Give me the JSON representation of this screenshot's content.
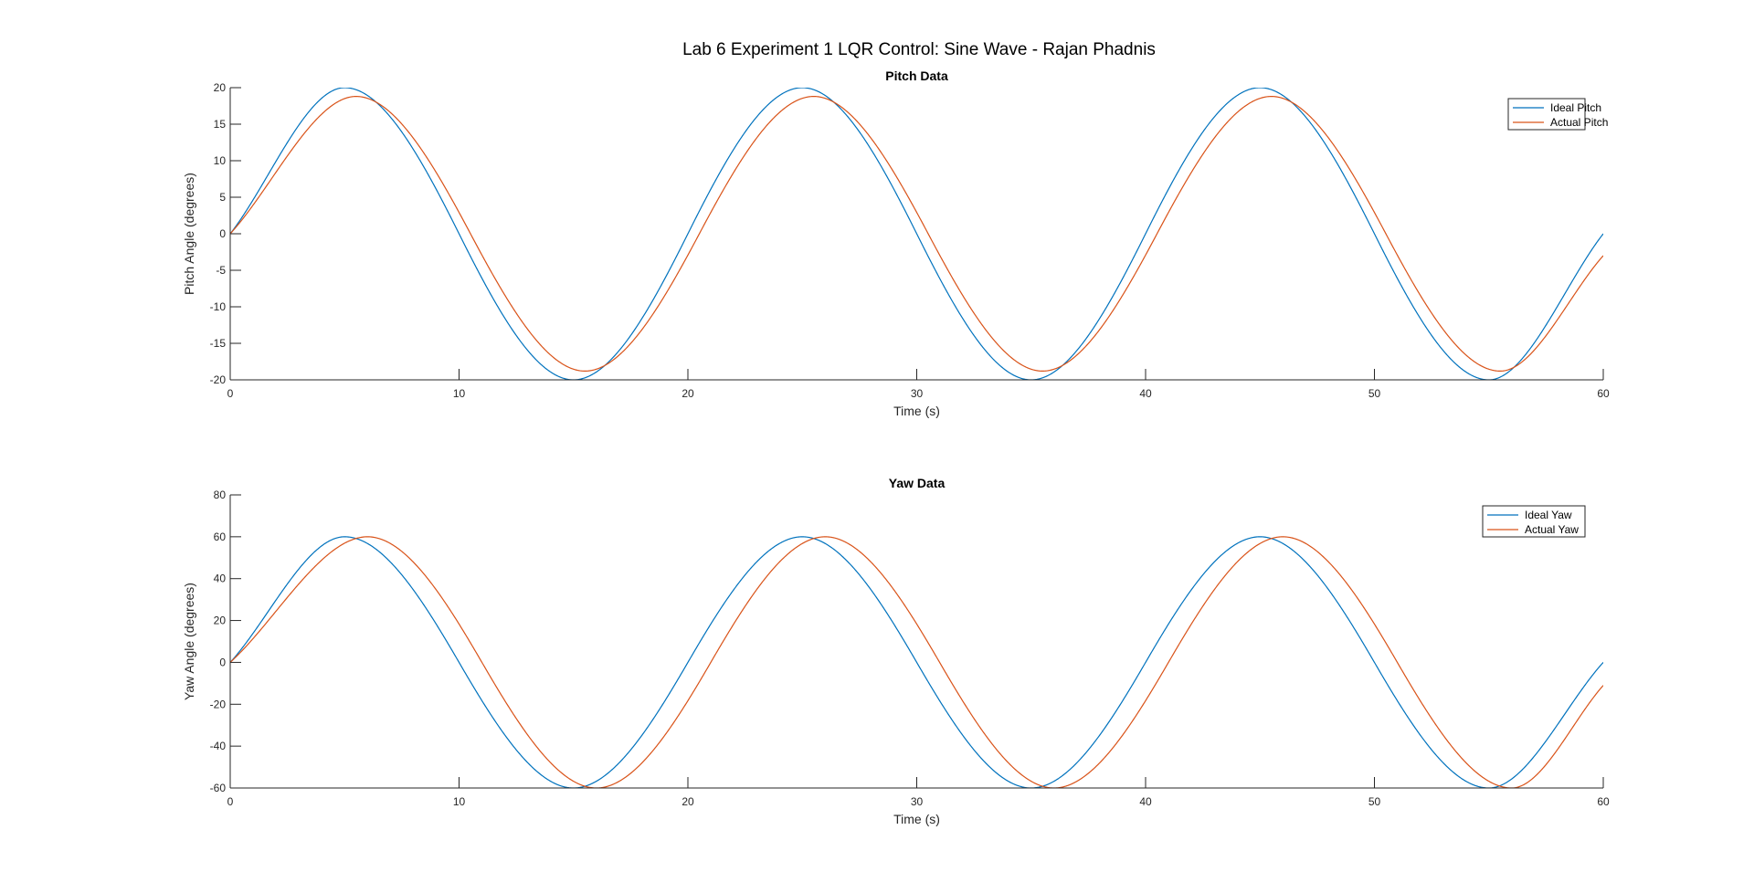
{
  "figure": {
    "title": "Lab 6 Experiment 1 LQR Control: Sine Wave - Rajan Phadnis",
    "background": "#ffffff"
  },
  "chart_data": [
    {
      "type": "line",
      "title": "Pitch Data",
      "xlabel": "Time (s)",
      "ylabel": "Pitch Angle (degrees)",
      "xlim": [
        0,
        60
      ],
      "ylim": [
        -20,
        20
      ],
      "xticks": [
        0,
        10,
        20,
        30,
        40,
        50,
        60
      ],
      "yticks": [
        -20,
        -15,
        -10,
        -5,
        0,
        5,
        10,
        15,
        20
      ],
      "grid": false,
      "legend_position": "top-right",
      "series": [
        {
          "name": "Ideal Pitch",
          "color": "#0072BD",
          "x": [
            0,
            5,
            10,
            15,
            20,
            25,
            30,
            35,
            40,
            45,
            50,
            55,
            60
          ],
          "values": [
            0,
            20,
            0,
            -20,
            0,
            20,
            0,
            -20,
            0,
            20,
            0,
            -20,
            0
          ]
        },
        {
          "name": "Actual Pitch",
          "color": "#D95319",
          "x": [
            0,
            5.5,
            10.5,
            15.5,
            20.5,
            25.5,
            30.5,
            35.5,
            40.5,
            45.5,
            50.5,
            55.5,
            60
          ],
          "values": [
            0,
            18.8,
            0,
            -18.8,
            0,
            18.8,
            0,
            -18.8,
            0,
            18.8,
            0,
            -18.8,
            -3
          ]
        }
      ]
    },
    {
      "type": "line",
      "title": "Yaw Data",
      "xlabel": "Time (s)",
      "ylabel": "Yaw Angle (degrees)",
      "xlim": [
        0,
        60
      ],
      "ylim": [
        -60,
        80
      ],
      "xticks": [
        0,
        10,
        20,
        30,
        40,
        50,
        60
      ],
      "yticks": [
        -60,
        -40,
        -20,
        0,
        20,
        40,
        60,
        80
      ],
      "grid": false,
      "legend_position": "top-right",
      "series": [
        {
          "name": "Ideal Yaw",
          "color": "#0072BD",
          "x": [
            0,
            5,
            10,
            15,
            20,
            25,
            30,
            35,
            40,
            45,
            50,
            55,
            60
          ],
          "values": [
            0,
            60,
            0,
            -60,
            0,
            60,
            0,
            -60,
            0,
            60,
            0,
            -60,
            0
          ]
        },
        {
          "name": "Actual Yaw",
          "color": "#D95319",
          "x": [
            0,
            6,
            11,
            16,
            21,
            26,
            31,
            36,
            41,
            46,
            51,
            56,
            60
          ],
          "values": [
            0,
            60,
            0,
            -60,
            0,
            60,
            0,
            -60,
            0,
            60,
            0,
            -60,
            -11
          ]
        }
      ]
    }
  ]
}
